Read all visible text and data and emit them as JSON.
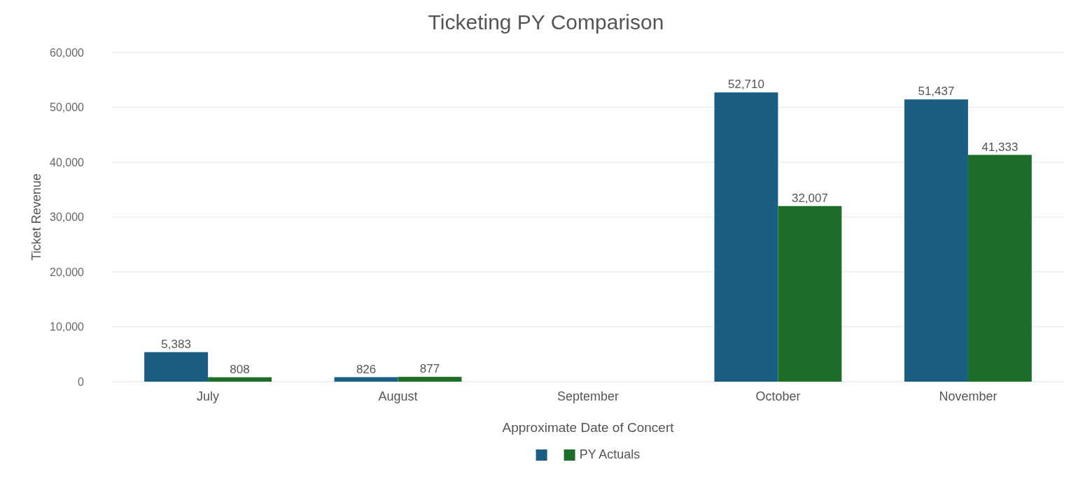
{
  "chart_data": {
    "type": "bar",
    "title": "Ticketing PY Comparison",
    "xlabel": "Approximate Date of Concert",
    "ylabel": "Ticket Revenue",
    "categories": [
      "July",
      "August",
      "September",
      "October",
      "November"
    ],
    "series": [
      {
        "color": "#1b5e84",
        "values": [
          5383,
          826,
          null,
          52710,
          51437
        ],
        "value_labels": [
          "5,383",
          "826",
          null,
          "52,710",
          "51,437"
        ]
      },
      {
        "name": "PY Actuals",
        "color": "#1e6e2a",
        "values": [
          808,
          877,
          null,
          32007,
          41333
        ],
        "value_labels": [
          "808",
          "877",
          null,
          "32,007",
          "41,333"
        ]
      }
    ],
    "ylim": [
      0,
      60000
    ],
    "yticks": [
      0,
      {
        "value": 10000,
        "label": "10,000"
      },
      {
        "value": 20000,
        "label": "20,000"
      },
      {
        "value": 30000,
        "label": "30,000"
      },
      {
        "value": 40000,
        "label": "40,000"
      },
      {
        "value": 50000,
        "label": "50,000"
      },
      {
        "value": 60000,
        "label": "60,000"
      }
    ],
    "grid": "y",
    "legend": "bottom"
  }
}
